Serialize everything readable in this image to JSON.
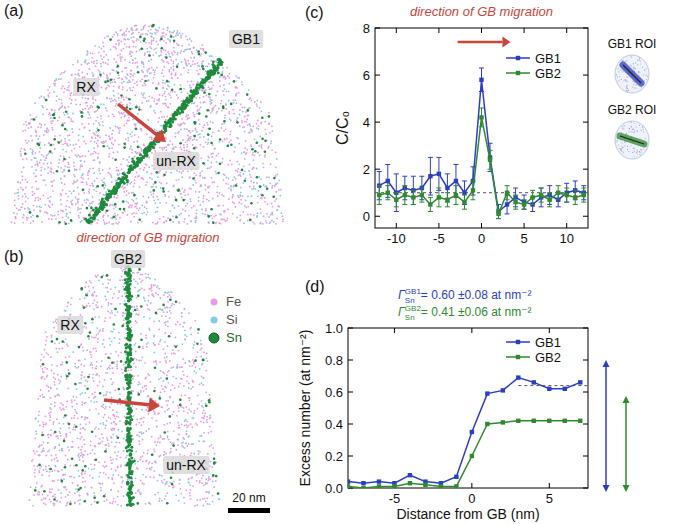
{
  "figure": {
    "panels": [
      {
        "label": "(a)",
        "grain_boundary": "GB1",
        "left": "RX",
        "right": "un-RX"
      },
      {
        "label": "(b)",
        "grain_boundary": "GB2",
        "left": "RX",
        "right": "un-RX"
      }
    ],
    "caption": "direction of GB migration",
    "elements": [
      {
        "name": "Fe",
        "color": "#e99be3"
      },
      {
        "name": "Si",
        "color": "#7fcbe8"
      },
      {
        "name": "Sn",
        "color": "#1e8a3c"
      }
    ],
    "scale_bar": "20 nm"
  },
  "chart_data": [
    {
      "type": "line",
      "label": "(c)",
      "title": "direction of GB migration",
      "y_label": "C/C₀",
      "x": [
        -12,
        -11,
        -10,
        -9,
        -8,
        -7,
        -6,
        -5,
        -4,
        -3,
        -2,
        -1,
        0,
        1,
        2,
        3,
        4,
        5,
        6,
        7,
        8,
        9,
        10,
        11,
        12
      ],
      "series": [
        {
          "name": "GB1",
          "color": "#2b3fc4",
          "marker": "square",
          "values": [
            1.3,
            1.5,
            1.0,
            1.2,
            1.1,
            1.2,
            1.7,
            1.8,
            1.2,
            1.5,
            1.0,
            1.5,
            5.8,
            2.5,
            0.2,
            0.5,
            0.8,
            0.6,
            0.5,
            0.8,
            0.9,
            0.7,
            1.0,
            1.1,
            1.0
          ],
          "errors": [
            0.6,
            0.7,
            0.8,
            0.5,
            0.6,
            0.5,
            0.8,
            0.7,
            0.6,
            0.7,
            0.5,
            0.6,
            0.5,
            0.6,
            0.3,
            0.4,
            0.4,
            0.3,
            0.3,
            0.4,
            0.4,
            0.3,
            0.4,
            0.4,
            0.3
          ]
        },
        {
          "name": "GB2",
          "color": "#2e8b2e",
          "marker": "square",
          "values": [
            0.9,
            1.0,
            0.7,
            0.9,
            0.8,
            0.9,
            0.5,
            0.8,
            0.7,
            0.9,
            0.6,
            1.1,
            4.2,
            2.4,
            0.1,
            1.0,
            0.6,
            0.5,
            0.8,
            0.9,
            0.7,
            1.0,
            0.9,
            0.8,
            0.9
          ],
          "errors": [
            0.4,
            0.3,
            0.3,
            0.4,
            0.3,
            0.3,
            0.3,
            0.4,
            0.3,
            0.4,
            0.3,
            0.4,
            0.4,
            0.4,
            0.2,
            0.3,
            0.3,
            0.2,
            0.3,
            0.3,
            0.3,
            0.3,
            0.3,
            0.3,
            0.3
          ]
        }
      ],
      "xlim": [
        -12.5,
        12.5
      ],
      "xticks": [
        -10,
        -5,
        0,
        5,
        10
      ],
      "ylim": [
        -0.5,
        8
      ],
      "yticks": [
        0,
        2,
        4,
        6,
        8
      ],
      "reference_line": 1,
      "legend": "top-right",
      "annotations": [
        "GB1 ROI",
        "GB2 ROI"
      ]
    },
    {
      "type": "line",
      "label": "(d)",
      "x_label": "Distance from GB (nm)",
      "y_label": "Excess number (at nm⁻²)",
      "x": [
        -8,
        -7,
        -6,
        -5,
        -4,
        -3,
        -2,
        -1,
        0,
        1,
        2,
        3,
        4,
        5,
        6,
        7
      ],
      "series": [
        {
          "name": "GB1",
          "color": "#2b3fc4",
          "marker": "square",
          "values": [
            0.04,
            0.03,
            0.04,
            0.03,
            0.08,
            0.04,
            0.03,
            0.07,
            0.35,
            0.59,
            0.61,
            0.69,
            0.66,
            0.62,
            0.62,
            0.66
          ],
          "plateau": {
            "x": [
              3,
              7.5
            ],
            "y": 0.64
          }
        },
        {
          "name": "GB2",
          "color": "#2e8b2e",
          "marker": "square",
          "values": [
            0.01,
            0.0,
            0.01,
            0.01,
            0.03,
            0.02,
            0.01,
            0.01,
            0.2,
            0.4,
            0.41,
            0.42,
            0.42,
            0.42,
            0.42,
            0.42
          ]
        }
      ],
      "xlim": [
        -8,
        7.5
      ],
      "xticks": [
        -5,
        0,
        5
      ],
      "ylim": [
        0,
        1
      ],
      "yticks": [
        {
          "value": 0,
          "label": "0.0"
        },
        {
          "value": 0.2,
          "label": "0.2"
        },
        {
          "value": 0.4,
          "label": "0.4"
        },
        {
          "value": 0.6,
          "label": "0.6"
        },
        {
          "value": 0.8,
          "label": "0.8"
        },
        {
          "value": 1,
          "label": "1.0"
        }
      ],
      "legend": "top-right",
      "annotations": [
        {
          "symbol": "Γ",
          "sub": "Sn",
          "sup": "GB1",
          "text": "= 0.60 ±0.08 at nm⁻²",
          "color": "#2b3fc4"
        },
        {
          "symbol": "Γ",
          "sub": "Sn",
          "sup": "GB2",
          "text": "= 0.41 ±0.06 at nm⁻²",
          "color": "#2e8b2e"
        }
      ]
    }
  ]
}
